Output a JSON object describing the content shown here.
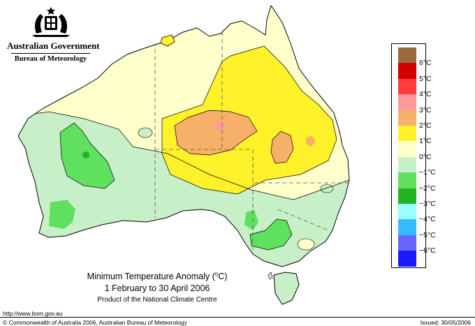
{
  "header": {
    "government": "Australian Government",
    "bureau": "Bureau of Meteorology"
  },
  "title": {
    "main": "Minimum Temperature Anomaly (",
    "degree": "o",
    "unit_close": "C)",
    "period": "1 February to 30 April 2006",
    "product": "Product of the National Climate Centre"
  },
  "footer": {
    "url": "http://www.bom.gov.au",
    "copyright": "© Commonwealth of Australia 2006, Australian Bureau of Meteorology",
    "issued": "Issued: 30/05/2006"
  },
  "legend": {
    "classes": [
      {
        "color": "#9b6a3c",
        "label": "6°C"
      },
      {
        "color": "#d40000",
        "label": "5°C"
      },
      {
        "color": "#ff3b3b",
        "label": "4°C"
      },
      {
        "color": "#ff9a9a",
        "label": "3°C"
      },
      {
        "color": "#f7b06a",
        "label": "2°C"
      },
      {
        "color": "#fff22a",
        "label": "1°C"
      },
      {
        "color": "#ffffcc",
        "label": "0°C"
      },
      {
        "color": "#c8f0c8",
        "label": "−1°C"
      },
      {
        "color": "#5fe05f",
        "label": "−2°C"
      },
      {
        "color": "#22b422",
        "label": "−3°C"
      },
      {
        "color": "#99ffff",
        "label": "−4°C"
      },
      {
        "color": "#33bbff",
        "label": "−5°C"
      },
      {
        "color": "#6666ff",
        "label": "−6°C"
      },
      {
        "color": "#1a1aff",
        "label": ""
      }
    ]
  }
}
